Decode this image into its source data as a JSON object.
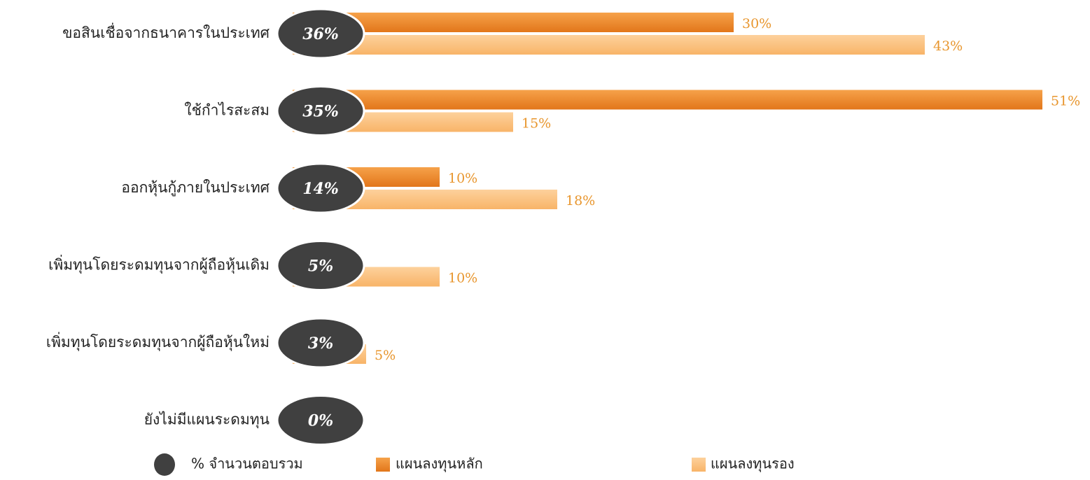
{
  "chart_data": {
    "type": "bar",
    "orientation": "horizontal",
    "categories": [
      "ขอสินเชื่อจากธนาคารในประเทศ",
      "ใช้กำไรสะสม",
      "ออกหุ้นกู้ภายในประเทศ",
      "เพิ่มทุนโดยระดมทุนจากผู้ถือหุ้นเดิม",
      "เพิ่มทุนโดยระดมทุนจากผู้ถือหุ้นใหม่",
      "ยังไม่มีแผนระดมทุน"
    ],
    "totals": {
      "name": "% จำนวนตอบรวม",
      "color": "#404040",
      "values": [
        36,
        35,
        14,
        5,
        3,
        0
      ],
      "value_labels": [
        "36%",
        "35%",
        "14%",
        "5%",
        "3%",
        "0%"
      ]
    },
    "series": [
      {
        "name": "แผนลงทุนหลัก",
        "color": "#f0892a",
        "values": [
          30,
          51,
          10,
          null,
          null,
          null
        ],
        "value_labels": [
          "30%",
          "51%",
          "10%",
          null,
          null,
          null
        ]
      },
      {
        "name": "แผนลงทุนรอง",
        "color": "#fbc07c",
        "values": [
          43,
          15,
          18,
          10,
          5,
          null
        ],
        "value_labels": [
          "43%",
          "15%",
          "18%",
          "10%",
          "5%",
          null
        ]
      }
    ]
  }
}
